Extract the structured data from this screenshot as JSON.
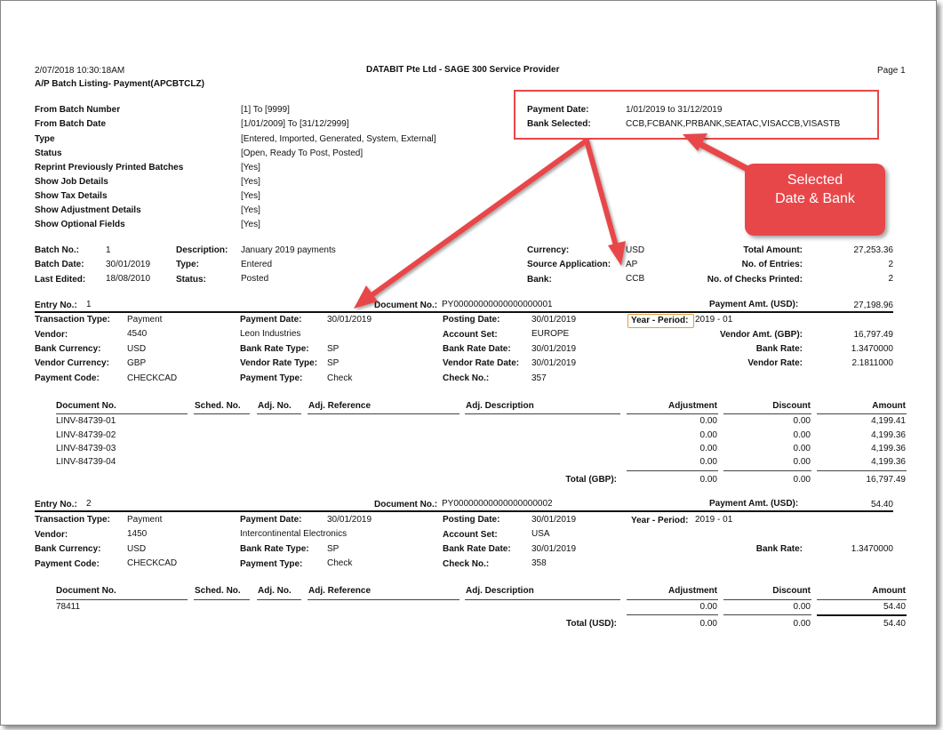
{
  "report": {
    "datetime": "2/07/2018  10:30:18AM",
    "company": "DATABIT Pte Ltd - SAGE 300 Service Provider",
    "page": "Page 1",
    "title": "A/P Batch Listing- Payment(APCBTCLZ)"
  },
  "criteria": [
    {
      "label": "From Batch Number",
      "value": "[1]  To  [9999]"
    },
    {
      "label": "From Batch Date",
      "value": "[1/01/2009]  To  [31/12/2999]"
    },
    {
      "label": "Type",
      "value": "[Entered, Imported, Generated, System, External]"
    },
    {
      "label": "Status",
      "value": "[Open, Ready To Post, Posted]"
    },
    {
      "label": "Reprint Previously Printed Batches",
      "value": "[Yes]"
    },
    {
      "label": "Show Job Details",
      "value": "[Yes]"
    },
    {
      "label": "Show Tax Details",
      "value": "[Yes]"
    },
    {
      "label": "Show Adjustment Details",
      "value": "[Yes]"
    },
    {
      "label": "Show Optional Fields",
      "value": "[Yes]"
    }
  ],
  "selection": {
    "payment_date_label": "Payment Date:",
    "payment_date": "1/01/2019 to 31/12/2019",
    "bank_selected_label": "Bank Selected:",
    "bank_selected": "CCB,FCBANK,PRBANK,SEATAC,VISACCB,VISASTB"
  },
  "callout": {
    "line1": "Selected",
    "line2": "Date & Bank",
    "color": "#e8474a"
  },
  "batch": {
    "batch_no_label": "Batch No.:",
    "batch_no": "1",
    "batch_date_label": "Batch Date:",
    "batch_date": "30/01/2019",
    "last_edited_label": "Last Edited:",
    "last_edited": "18/08/2010",
    "description_label": "Description:",
    "description": "January 2019 payments",
    "type_label": "Type:",
    "type": "Entered",
    "status_label": "Status:",
    "status": "Posted",
    "currency_label": "Currency:",
    "currency": "USD",
    "source_app_label": "Source Application:",
    "source_app": "AP",
    "bank_label": "Bank:",
    "bank": "CCB",
    "total_amount_label": "Total Amount:",
    "total_amount": "27,253.36",
    "entries_label": "No. of Entries:",
    "entries": "2",
    "checks_label": "No. of Checks Printed:",
    "checks": "2"
  },
  "detail_headers": {
    "doc_no": "Document No.",
    "sched_no": "Sched. No.",
    "adj_no": "Adj. No.",
    "adj_ref": "Adj. Reference",
    "adj_desc": "Adj. Description",
    "adjustment": "Adjustment",
    "discount": "Discount",
    "amount": "Amount"
  },
  "entries": [
    {
      "entry_label": "Entry No.:",
      "entry_no": "1",
      "document_label": "Document No.:",
      "document_no": "PY00000000000000000001",
      "payment_amt_label": "Payment Amt. (USD):",
      "payment_amt": "27,198.96",
      "transaction_type": "Payment",
      "vendor": "4540",
      "bank_currency": "USD",
      "vendor_currency": "GBP",
      "payment_code": "CHECKCAD",
      "payment_date": "30/01/2019",
      "vendor_name": "Leon Industries",
      "bank_rate_type": "SP",
      "vendor_rate_type": "SP",
      "payment_type": "Check",
      "posting_date": "30/01/2019",
      "account_set": "EUROPE",
      "bank_rate_date": "30/01/2019",
      "vendor_rate_date": "30/01/2019",
      "check_no": "357",
      "year_period": "2019 - 01",
      "vendor_amt_label": "Vendor Amt. (GBP):",
      "vendor_amt": "16,797.49",
      "bank_rate": "1.3470000",
      "vendor_rate": "2.1811000",
      "lines": [
        {
          "doc": "LINV-84739-01",
          "adj": "0.00",
          "disc": "0.00",
          "amt": "4,199.41"
        },
        {
          "doc": "LINV-84739-02",
          "adj": "0.00",
          "disc": "0.00",
          "amt": "4,199.36"
        },
        {
          "doc": "LINV-84739-03",
          "adj": "0.00",
          "disc": "0.00",
          "amt": "4,199.36"
        },
        {
          "doc": "LINV-84739-04",
          "adj": "0.00",
          "disc": "0.00",
          "amt": "4,199.36"
        }
      ],
      "total_label": "Total (GBP):",
      "total_adj": "0.00",
      "total_disc": "0.00",
      "total_amt": "16,797.49"
    },
    {
      "entry_label": "Entry No.:",
      "entry_no": "2",
      "document_label": "Document No.:",
      "document_no": "PY00000000000000000002",
      "payment_amt_label": "Payment Amt. (USD):",
      "payment_amt": "54.40",
      "transaction_type": "Payment",
      "vendor": "1450",
      "bank_currency": "USD",
      "payment_code": "CHECKCAD",
      "payment_date": "30/01/2019",
      "vendor_name": "Intercontinental Electronics",
      "bank_rate_type": "SP",
      "payment_type": "Check",
      "posting_date": "30/01/2019",
      "account_set": "USA",
      "bank_rate_date": "30/01/2019",
      "check_no": "358",
      "year_period": "2019 - 01",
      "bank_rate": "1.3470000",
      "lines": [
        {
          "doc": "78411",
          "adj": "0.00",
          "disc": "0.00",
          "amt": "54.40"
        }
      ],
      "total_label": "Total (USD):",
      "total_adj": "0.00",
      "total_disc": "0.00",
      "total_amt": "54.40"
    }
  ],
  "labels": {
    "transaction_type": "Transaction Type:",
    "vendor": "Vendor:",
    "bank_currency": "Bank Currency:",
    "vendor_currency": "Vendor Currency:",
    "payment_code": "Payment Code:",
    "payment_date": "Payment Date:",
    "bank_rate_type": "Bank Rate Type:",
    "vendor_rate_type": "Vendor Rate Type:",
    "payment_type": "Payment Type:",
    "posting_date": "Posting Date:",
    "account_set": "Account Set:",
    "bank_rate_date": "Bank Rate Date:",
    "vendor_rate_date": "Vendor Rate Date:",
    "check_no": "Check No.:",
    "year_period": "Year - Period:",
    "bank_rate": "Bank Rate:",
    "vendor_rate": "Vendor Rate:"
  }
}
